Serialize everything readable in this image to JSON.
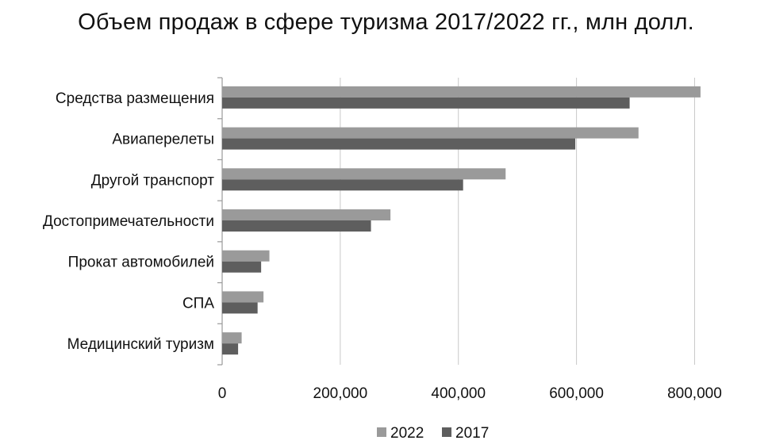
{
  "chart_data": {
    "type": "bar",
    "orientation": "horizontal",
    "title": "Объем продаж в сфере туризма 2017/2022 гг., млн долл.",
    "categories": [
      "Средства размещения",
      "Авиаперелеты",
      "Другой транспорт",
      "Достопримечательности",
      "Прокат автомобилей",
      "СПА",
      "Медицинский туризм"
    ],
    "series": [
      {
        "name": "2022",
        "color": "#9a9a9a",
        "values": [
          810000,
          705000,
          480000,
          285000,
          80000,
          70000,
          33000
        ]
      },
      {
        "name": "2017",
        "color": "#5e5e5e",
        "values": [
          690000,
          598000,
          408000,
          252000,
          66000,
          60000,
          27000
        ]
      }
    ],
    "xlim": [
      0,
      880000
    ],
    "xticks": [
      0,
      200000,
      400000,
      600000,
      800000
    ],
    "xtick_labels": [
      "0",
      "200,000",
      "400,000",
      "600,000",
      "800,000"
    ],
    "grid": "vertical",
    "legend": "bottom"
  }
}
